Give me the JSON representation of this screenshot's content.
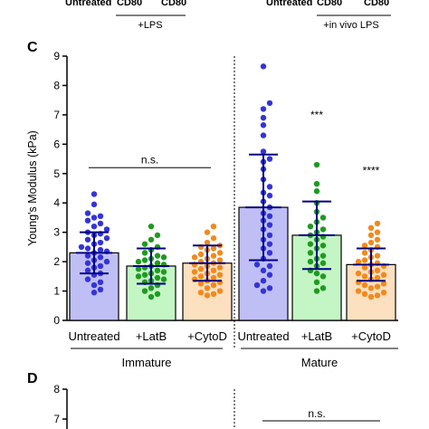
{
  "header_fragment": {
    "left_text": "Untreated",
    "left_cd": "CD80",
    "left_cd2": "CD80",
    "left_sub": "+LPS",
    "right_text": "Untreated",
    "right_cd": "CD80",
    "right_cd2": "CD80",
    "right_sub": "+in vivo LPS"
  },
  "panel_c": {
    "label": "C"
  },
  "panel_d": {
    "label": "D",
    "annotation": "n.s.",
    "yticks": [
      "8",
      "7"
    ]
  },
  "chart_data": {
    "type": "bar",
    "ylabel": "Young's Modulus (kPa)",
    "ylim": [
      0,
      9
    ],
    "yticks": [
      "0",
      "1",
      "2",
      "3",
      "4",
      "5",
      "6",
      "7",
      "8",
      "9"
    ],
    "categories": [
      "Untreated",
      "+LatB",
      "+CytoD",
      "Untreated",
      "+LatB",
      "+CytoD"
    ],
    "groups": [
      {
        "name": "Immature",
        "categories": [
          "Untreated",
          "+LatB",
          "+CytoD"
        ]
      },
      {
        "name": "Mature",
        "categories": [
          "Untreated",
          "+LatB",
          "+CytoD"
        ]
      }
    ],
    "values": [
      2.3,
      1.85,
      1.95,
      3.85,
      2.9,
      1.9
    ],
    "sd": [
      0.7,
      0.6,
      0.6,
      1.8,
      1.15,
      0.55
    ],
    "colors": {
      "fill": [
        "#bfbff5",
        "#c4f5c4",
        "#fde0c0",
        "#bfbff5",
        "#c4f5c4",
        "#fde0c0"
      ],
      "point": [
        "#3434d8",
        "#1f9a1f",
        "#f08a1e",
        "#3434d8",
        "#1f9a1f",
        "#f08a1e"
      ],
      "bar_edge": "#000000",
      "errorbar": "#000080"
    },
    "annotations": [
      {
        "text": "n.s.",
        "bracket": [
          0,
          2
        ],
        "y": 5.2
      },
      {
        "text": "***",
        "over": 4,
        "y": 7.0
      },
      {
        "text": "****",
        "over": 5,
        "y": 5.1
      }
    ],
    "points": [
      [
        4.3,
        3.95,
        3.65,
        3.55,
        3.5,
        3.4,
        3.3,
        3.2,
        3.1,
        3.0,
        2.95,
        2.9,
        2.8,
        2.75,
        2.65,
        2.6,
        2.5,
        2.45,
        2.4,
        2.35,
        2.3,
        2.2,
        2.15,
        2.05,
        2.0,
        1.95,
        1.85,
        1.8,
        1.7,
        1.6,
        1.55,
        1.4,
        1.3,
        1.2,
        1.05,
        0.95
      ],
      [
        3.2,
        2.9,
        2.75,
        2.6,
        2.5,
        2.4,
        2.3,
        2.2,
        2.15,
        2.1,
        2.05,
        2.0,
        1.95,
        1.9,
        1.85,
        1.8,
        1.75,
        1.7,
        1.65,
        1.6,
        1.55,
        1.5,
        1.45,
        1.4,
        1.35,
        1.3,
        1.2,
        1.1,
        1.0,
        0.9,
        0.8
      ],
      [
        3.2,
        3.0,
        2.8,
        2.65,
        2.55,
        2.5,
        2.45,
        2.4,
        2.3,
        2.25,
        2.2,
        2.15,
        2.1,
        2.05,
        2.0,
        1.95,
        1.9,
        1.85,
        1.8,
        1.75,
        1.7,
        1.65,
        1.6,
        1.55,
        1.5,
        1.45,
        1.4,
        1.35,
        1.3,
        1.25,
        1.2,
        1.1,
        1.0,
        0.95,
        0.9,
        0.85
      ],
      [
        8.65,
        7.4,
        7.2,
        6.9,
        6.65,
        6.3,
        5.75,
        5.5,
        5.4,
        5.15,
        4.8,
        4.55,
        4.35,
        4.25,
        4.05,
        3.85,
        3.65,
        3.55,
        3.4,
        3.25,
        3.1,
        2.9,
        2.75,
        2.6,
        2.45,
        2.3,
        2.1,
        1.9,
        1.85,
        1.7,
        1.55,
        1.35,
        1.2,
        1.1,
        1.0
      ],
      [
        5.3,
        4.65,
        4.4,
        4.0,
        3.7,
        3.5,
        3.35,
        3.2,
        3.1,
        3.0,
        2.9,
        2.85,
        2.75,
        2.6,
        2.55,
        2.45,
        2.3,
        2.2,
        2.1,
        2.0,
        1.95,
        1.85,
        1.7,
        1.6,
        1.5,
        1.3,
        1.1,
        1.0
      ],
      [
        3.3,
        3.15,
        3.0,
        2.9,
        2.75,
        2.65,
        2.55,
        2.5,
        2.4,
        2.3,
        2.2,
        2.15,
        2.05,
        2.0,
        1.95,
        1.9,
        1.85,
        1.8,
        1.7,
        1.65,
        1.6,
        1.55,
        1.5,
        1.45,
        1.4,
        1.3,
        1.25,
        1.2,
        1.15,
        1.1,
        1.0,
        0.95,
        0.9,
        0.85,
        0.8
      ]
    ]
  }
}
